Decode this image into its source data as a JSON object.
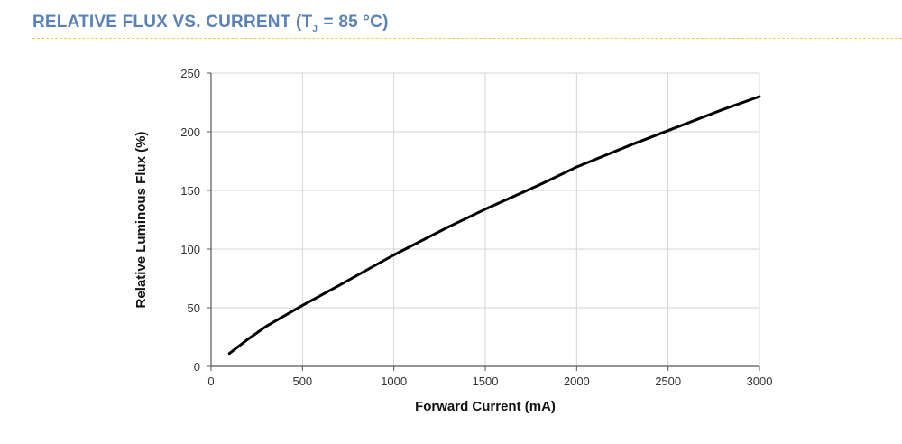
{
  "header": {
    "title_prefix": "RELATIVE FLUX VS. CURRENT (T",
    "title_subscript": "J",
    "title_suffix": " = 85 °C)",
    "title_color": "#5b82b8",
    "rule_color": "#f0c64a"
  },
  "chart_data": {
    "type": "line",
    "title": "RELATIVE FLUX VS. CURRENT (TJ = 85 °C)",
    "xlabel": "Forward Current (mA)",
    "ylabel": "Relative Luminous Flux (%)",
    "xlim": [
      0,
      3000
    ],
    "ylim": [
      0,
      250
    ],
    "xticks": [
      0,
      500,
      1000,
      1500,
      2000,
      2500,
      3000
    ],
    "yticks": [
      0,
      50,
      100,
      150,
      200,
      250
    ],
    "xtick_labels": [
      "0",
      "500",
      "1000",
      "1500",
      "2000",
      "2500",
      "3000"
    ],
    "ytick_labels": [
      "0",
      "50",
      "100",
      "150",
      "200",
      "250"
    ],
    "grid": true,
    "legend": "none",
    "line_color": "#000000",
    "grid_color": "#d3d3d3",
    "series": [
      {
        "x": [
          100,
          200,
          300,
          400,
          500,
          700,
          1000,
          1300,
          1500,
          1800,
          2000,
          2300,
          2500,
          2800,
          3000
        ],
        "y": [
          11,
          23,
          34,
          43,
          52,
          69,
          95,
          119,
          134,
          155,
          170,
          189,
          201,
          219,
          230
        ]
      }
    ]
  }
}
